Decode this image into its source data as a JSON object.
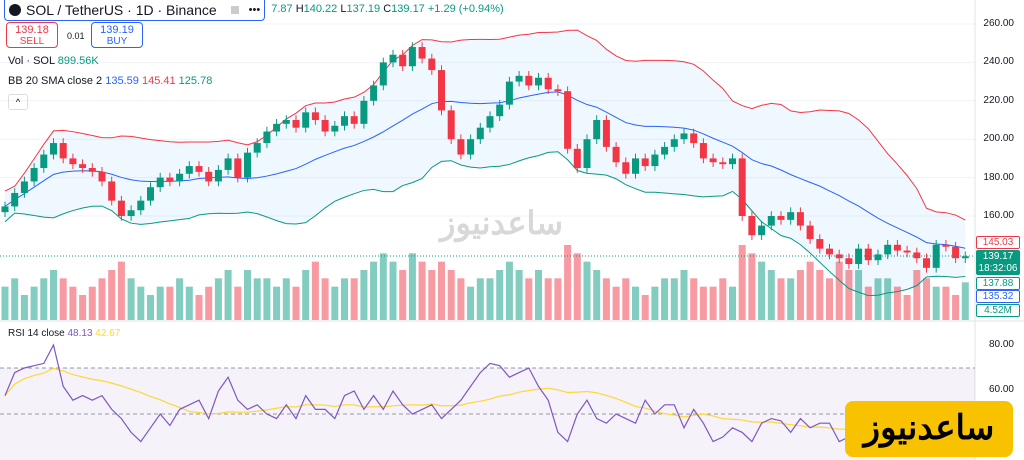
{
  "header": {
    "symbol": "SOL / TetherUS · 1D · Binance",
    "more": "•••",
    "ohlc": {
      "open_partial": "7.87",
      "h_label": "H",
      "high": "140.22",
      "l_label": "L",
      "low": "137.19",
      "c_label": "C",
      "close": "139.17",
      "change": "+1.29 (+0.94%)"
    }
  },
  "trade": {
    "sell_price": "139.18",
    "sell_label": "SELL",
    "spread": "0.01",
    "buy_price": "139.19",
    "buy_label": "BUY"
  },
  "legends": {
    "vol_label": "Vol · SOL",
    "vol_value": "899.56K",
    "bb_label": "BB 20 SMA close 2",
    "bb_basis": "135.59",
    "bb_upper": "145.41",
    "bb_lower": "125.78",
    "rsi_label": "RSI 14 close",
    "rsi_value": "48.13",
    "rsi_ma": "42.67"
  },
  "price_axis": [
    "260.00",
    "240.00",
    "220.00",
    "200.00",
    "180.00",
    "160.00"
  ],
  "rsi_axis": [
    "80.00",
    "60.00"
  ],
  "tags": {
    "upper": "145.03",
    "last": "139.17",
    "countdown": "18:32:06",
    "lower": "137.88",
    "basis": "135.32",
    "volume": "4.52M"
  },
  "watermark": "ساعدنیوز",
  "brand_logo": "ساعدنیوز",
  "colors": {
    "up": "#089981",
    "down": "#f23645",
    "bb_basis": "#2962ff",
    "bb_upper": "#f23645",
    "bb_lower": "#089981",
    "rsi": "#7e57c2",
    "rsi_ma": "#fdd835"
  },
  "chart_data": {
    "type": "candlestick",
    "price_range": [
      140,
      265
    ],
    "closes": [
      165,
      172,
      178,
      185,
      192,
      198,
      190,
      187,
      185,
      183,
      178,
      168,
      160,
      163,
      168,
      175,
      180,
      178,
      182,
      186,
      183,
      178,
      184,
      190,
      180,
      193,
      198,
      204,
      208,
      210,
      206,
      214,
      210,
      204,
      207,
      212,
      208,
      220,
      228,
      240,
      244,
      238,
      248,
      242,
      236,
      215,
      200,
      192,
      200,
      206,
      212,
      218,
      230,
      233,
      228,
      232,
      226,
      225,
      195,
      185,
      200,
      210,
      196,
      188,
      182,
      190,
      186,
      192,
      196,
      200,
      203,
      198,
      190,
      188,
      187,
      190,
      160,
      150,
      155,
      160,
      158,
      162,
      155,
      148,
      143,
      140,
      138,
      135,
      143,
      137,
      140,
      145,
      142,
      141,
      138,
      133,
      145,
      144,
      138,
      139
    ],
    "volumes": [
      4,
      5,
      3,
      4,
      5,
      6,
      5,
      4,
      3,
      4,
      5,
      6,
      7,
      5,
      4,
      3,
      4,
      4,
      5,
      4,
      3,
      4,
      5,
      6,
      4,
      6,
      5,
      5,
      4,
      5,
      4,
      6,
      7,
      5,
      4,
      5,
      5,
      6,
      7,
      8,
      7,
      6,
      8,
      7,
      6,
      7,
      6,
      5,
      4,
      5,
      5,
      6,
      7,
      6,
      5,
      6,
      5,
      5,
      9,
      8,
      7,
      6,
      5,
      4,
      5,
      4,
      3,
      4,
      5,
      5,
      6,
      5,
      4,
      4,
      5,
      4,
      9,
      8,
      7,
      6,
      5,
      5,
      6,
      7,
      6,
      5,
      7,
      6,
      6,
      4,
      5,
      5,
      4,
      3,
      6,
      5,
      4,
      4,
      3,
      4.52
    ],
    "rsi": [
      58,
      68,
      70,
      71,
      72,
      80,
      62,
      56,
      58,
      56,
      58,
      52,
      48,
      42,
      38,
      44,
      50,
      45,
      52,
      54,
      56,
      48,
      60,
      66,
      56,
      52,
      54,
      50,
      48,
      54,
      48,
      58,
      52,
      52,
      48,
      58,
      60,
      52,
      58,
      52,
      60,
      54,
      50,
      52,
      54,
      48,
      52,
      56,
      62,
      68,
      72,
      71,
      66,
      68,
      70,
      62,
      56,
      42,
      38,
      50,
      56,
      48,
      46,
      50,
      48,
      46,
      56,
      50,
      54,
      54,
      44,
      52,
      46,
      38,
      40,
      44,
      42,
      38,
      46,
      48,
      47,
      42,
      48,
      44,
      46,
      46,
      38,
      40,
      42,
      34,
      32,
      38,
      40,
      34,
      32,
      36,
      36,
      34,
      44,
      48
    ],
    "rsi_range": [
      30,
      85
    ],
    "rsi_levels": [
      70,
      50
    ]
  }
}
